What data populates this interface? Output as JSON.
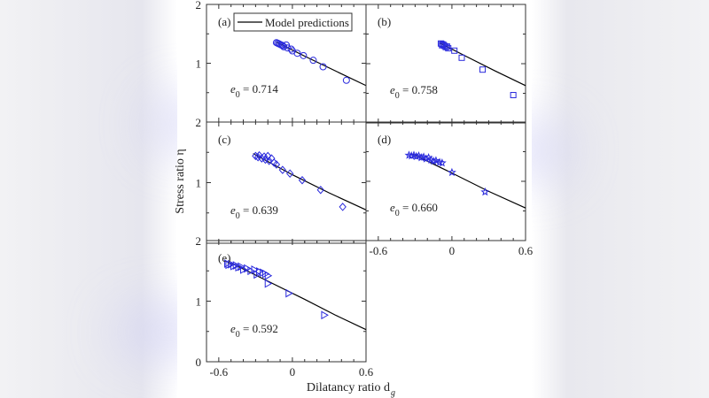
{
  "chart_data": {
    "type": "scatter",
    "xlabel": "Dilatancy ratio d",
    "xlabel_sub": "g",
    "ylabel": "Stress ratio η",
    "xlim": [
      -0.7,
      0.6
    ],
    "ylim": [
      0,
      2
    ],
    "xticks": [
      "-0.6",
      "0",
      "0.6"
    ],
    "yticks": [
      "0",
      "1",
      "2"
    ],
    "legend": {
      "label": "Model predictions",
      "placement": "top"
    },
    "marker_color": "#2b2bdd",
    "line_color": "#000000",
    "panels": [
      {
        "label": "(a)",
        "e0": "= 0.714",
        "marker": "circle",
        "points": [
          [
            -0.13,
            1.35
          ],
          [
            -0.12,
            1.34
          ],
          [
            -0.11,
            1.33
          ],
          [
            -0.1,
            1.32
          ],
          [
            -0.09,
            1.31
          ],
          [
            -0.08,
            1.3
          ],
          [
            -0.07,
            1.28
          ],
          [
            -0.05,
            1.31
          ],
          [
            -0.04,
            1.26
          ],
          [
            -0.01,
            1.24
          ],
          [
            0.0,
            1.21
          ],
          [
            0.04,
            1.17
          ],
          [
            0.09,
            1.13
          ],
          [
            0.17,
            1.05
          ],
          [
            0.25,
            0.94
          ],
          [
            0.44,
            0.71
          ]
        ],
        "model": [
          [
            -0.13,
            1.36
          ],
          [
            0.1,
            1.12
          ],
          [
            0.35,
            0.87
          ],
          [
            0.6,
            0.62
          ]
        ]
      },
      {
        "label": "(b)",
        "e0": "= 0.758",
        "marker": "square",
        "points": [
          [
            -0.09,
            1.34
          ],
          [
            -0.08,
            1.33
          ],
          [
            -0.08,
            1.31
          ],
          [
            -0.07,
            1.32
          ],
          [
            -0.06,
            1.3
          ],
          [
            -0.05,
            1.28
          ],
          [
            -0.04,
            1.29
          ],
          [
            -0.03,
            1.26
          ],
          [
            0.02,
            1.22
          ],
          [
            0.08,
            1.1
          ],
          [
            0.25,
            0.9
          ],
          [
            0.5,
            0.47
          ]
        ],
        "model": [
          [
            -0.1,
            1.35
          ],
          [
            0.1,
            1.14
          ],
          [
            0.35,
            0.88
          ],
          [
            0.6,
            0.63
          ]
        ]
      },
      {
        "label": "(c)",
        "e0": "= 0.639",
        "marker": "diamond",
        "points": [
          [
            -0.3,
            1.44
          ],
          [
            -0.28,
            1.42
          ],
          [
            -0.27,
            1.45
          ],
          [
            -0.25,
            1.4
          ],
          [
            -0.23,
            1.43
          ],
          [
            -0.22,
            1.38
          ],
          [
            -0.2,
            1.44
          ],
          [
            -0.19,
            1.36
          ],
          [
            -0.17,
            1.4
          ],
          [
            -0.15,
            1.33
          ],
          [
            -0.13,
            1.3
          ],
          [
            -0.08,
            1.21
          ],
          [
            -0.02,
            1.15
          ],
          [
            0.08,
            1.04
          ],
          [
            0.23,
            0.88
          ],
          [
            0.41,
            0.6
          ]
        ],
        "model": [
          [
            -0.32,
            1.48
          ],
          [
            0.0,
            1.13
          ],
          [
            0.3,
            0.83
          ],
          [
            0.6,
            0.55
          ]
        ]
      },
      {
        "label": "(d)",
        "e0": "= 0.660",
        "marker": "star",
        "points": [
          [
            -0.35,
            1.44
          ],
          [
            -0.33,
            1.43
          ],
          [
            -0.31,
            1.44
          ],
          [
            -0.29,
            1.42
          ],
          [
            -0.27,
            1.43
          ],
          [
            -0.25,
            1.4
          ],
          [
            -0.23,
            1.41
          ],
          [
            -0.21,
            1.38
          ],
          [
            -0.19,
            1.4
          ],
          [
            -0.17,
            1.36
          ],
          [
            -0.15,
            1.34
          ],
          [
            -0.13,
            1.35
          ],
          [
            -0.1,
            1.32
          ],
          [
            -0.08,
            1.31
          ],
          [
            0.0,
            1.15
          ],
          [
            0.27,
            0.82
          ]
        ],
        "model": [
          [
            -0.32,
            1.46
          ],
          [
            0.0,
            1.14
          ],
          [
            0.3,
            0.83
          ],
          [
            0.6,
            0.55
          ]
        ]
      },
      {
        "label": "(e)",
        "e0": "= 0.592",
        "marker": "triangle-right",
        "points": [
          [
            -0.53,
            1.62
          ],
          [
            -0.52,
            1.6
          ],
          [
            -0.5,
            1.61
          ],
          [
            -0.48,
            1.58
          ],
          [
            -0.46,
            1.59
          ],
          [
            -0.44,
            1.56
          ],
          [
            -0.42,
            1.57
          ],
          [
            -0.4,
            1.52
          ],
          [
            -0.37,
            1.54
          ],
          [
            -0.34,
            1.5
          ],
          [
            -0.31,
            1.52
          ],
          [
            -0.29,
            1.44
          ],
          [
            -0.27,
            1.49
          ],
          [
            -0.24,
            1.47
          ],
          [
            -0.22,
            1.45
          ],
          [
            -0.2,
            1.42
          ],
          [
            -0.2,
            1.29
          ],
          [
            -0.03,
            1.13
          ],
          [
            0.26,
            0.77
          ]
        ],
        "model": [
          [
            -0.5,
            1.63
          ],
          [
            -0.2,
            1.33
          ],
          [
            0.1,
            1.03
          ],
          [
            0.35,
            0.77
          ],
          [
            0.6,
            0.53
          ]
        ]
      }
    ]
  }
}
